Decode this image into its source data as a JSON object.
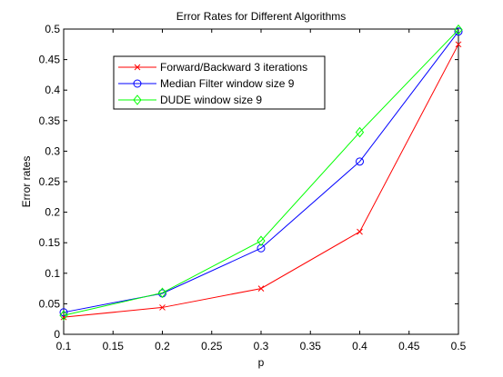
{
  "chart_data": {
    "type": "line",
    "title": "Error Rates for Different Algorithms",
    "xlabel": "p",
    "ylabel": "Error rates",
    "xlim": [
      0.1,
      0.5
    ],
    "ylim": [
      0,
      0.5
    ],
    "xticks": [
      "0.1",
      "0.15",
      "0.2",
      "0.25",
      "0.3",
      "0.35",
      "0.4",
      "0.45",
      "0.5"
    ],
    "yticks": [
      "0",
      "0.05",
      "0.1",
      "0.15",
      "0.2",
      "0.25",
      "0.3",
      "0.35",
      "0.4",
      "0.45",
      "0.5"
    ],
    "grid": false,
    "legend_position": "upper-left",
    "x": [
      0.1,
      0.2,
      0.3,
      0.4,
      0.5
    ],
    "series": [
      {
        "name": "Forward/Backward 3 iterations",
        "color": "#ff0000",
        "marker": "x",
        "values": [
          0.028,
          0.044,
          0.075,
          0.168,
          0.475
        ]
      },
      {
        "name": "Median Filter window size 9",
        "color": "#0000ff",
        "marker": "circle",
        "values": [
          0.036,
          0.067,
          0.141,
          0.283,
          0.496
        ]
      },
      {
        "name": "DUDE window size 9",
        "color": "#00ff00",
        "marker": "diamond",
        "values": [
          0.031,
          0.068,
          0.153,
          0.331,
          0.499
        ]
      }
    ]
  }
}
